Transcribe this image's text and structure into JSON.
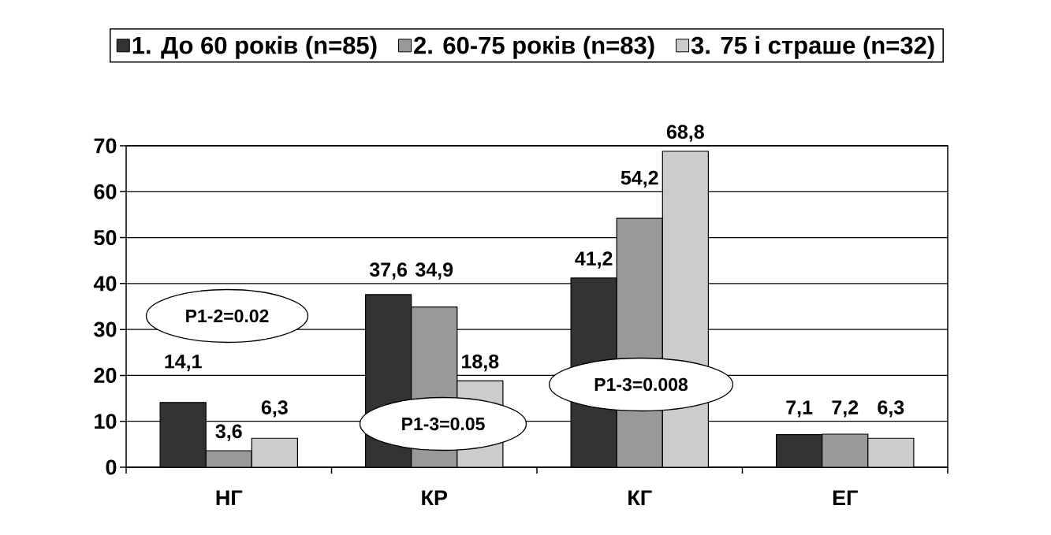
{
  "chart_data": {
    "type": "bar",
    "categories": [
      "НГ",
      "КР",
      "КГ",
      "ЕГ"
    ],
    "series": [
      {
        "name": "1. До 60 років (n=85)",
        "color": "#333333",
        "values": [
          14.1,
          37.6,
          41.2,
          7.1
        ],
        "value_labels": [
          "14,1",
          "37,6",
          "41,2",
          "7,1"
        ]
      },
      {
        "name": "2. 60-75 років (n=83)",
        "color": "#999999",
        "values": [
          3.6,
          34.9,
          54.2,
          7.2
        ],
        "value_labels": [
          "3,6",
          "34,9",
          "54,2",
          "7,2"
        ]
      },
      {
        "name": "3. 75 і страше (n=32)",
        "color": "#cccccc",
        "values": [
          6.3,
          18.8,
          68.8,
          6.3
        ],
        "value_labels": [
          "6,3",
          "18,8",
          "68,8",
          "6,3"
        ]
      }
    ],
    "ylim": [
      0,
      70
    ],
    "yticks": [
      0,
      10,
      20,
      30,
      40,
      50,
      60,
      70
    ],
    "grid": "y",
    "legend": "top",
    "annotations": [
      "P1-2=0.02",
      "P1-3=0.05",
      "P1-3=0.008"
    ]
  }
}
